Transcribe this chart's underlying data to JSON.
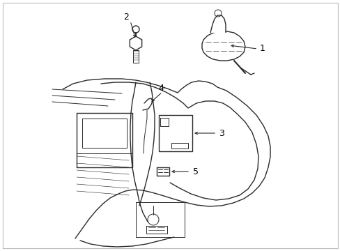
{
  "bg_color": "#ffffff",
  "line_color": "#2a2a2a",
  "label_color": "#000000",
  "figsize": [
    4.89,
    3.6
  ],
  "dpi": 100
}
